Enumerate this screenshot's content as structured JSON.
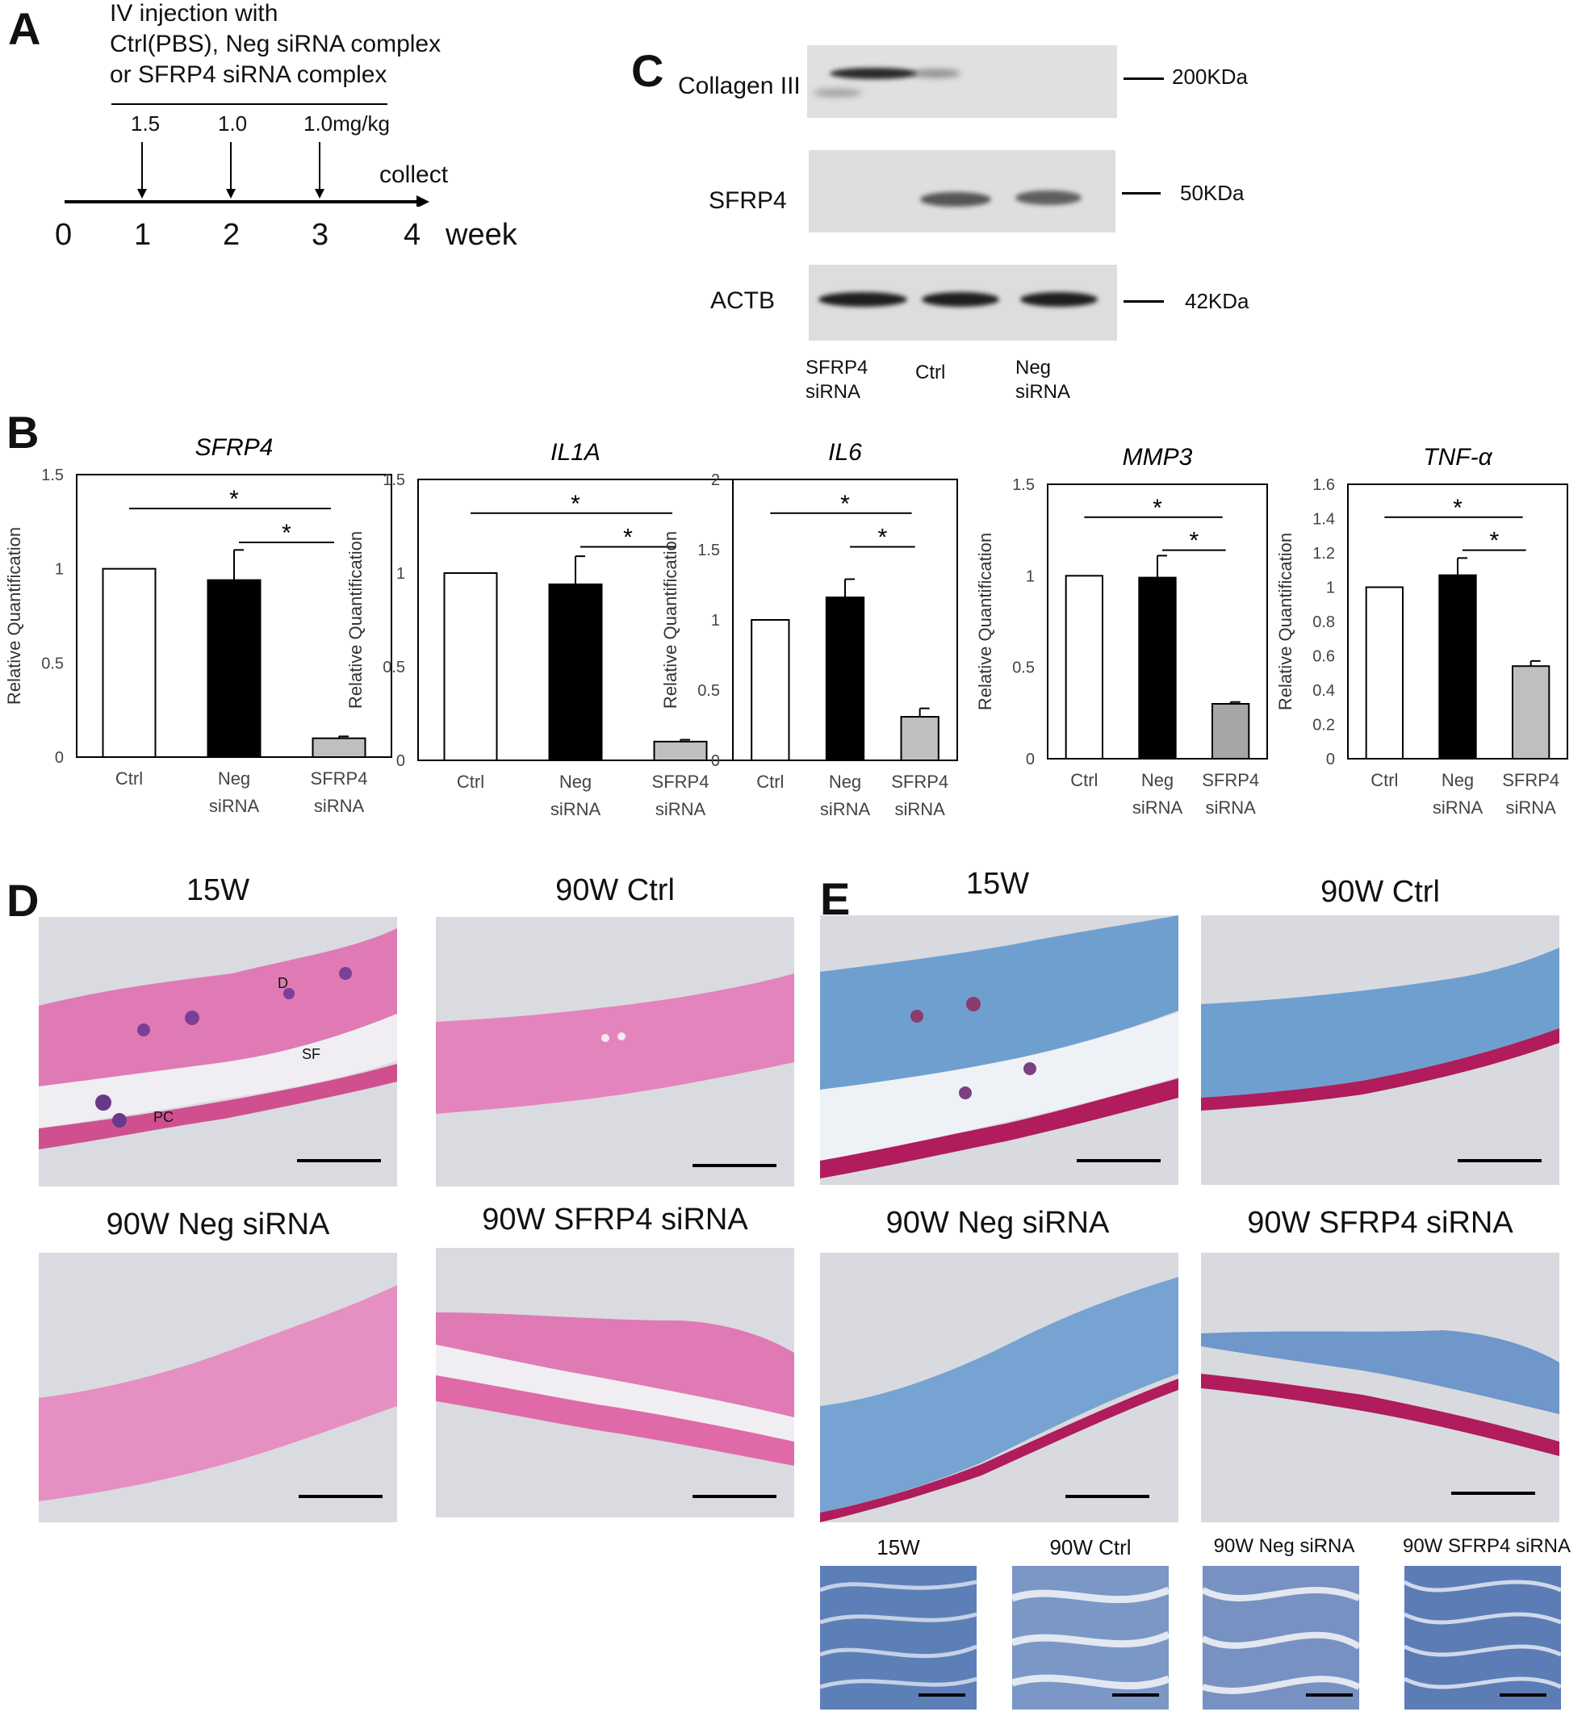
{
  "panels": {
    "A": "A",
    "B": "B",
    "C": "C",
    "D": "D",
    "E": "E"
  },
  "panelA": {
    "line1": "IV injection with",
    "line2": "Ctrl(PBS), Neg siRNA complex",
    "line3": "or SFRP4 siRNA complex",
    "doses": [
      "1.5",
      "1.0",
      "1.0mg/kg"
    ],
    "collect": "collect",
    "ticks": [
      "0",
      "1",
      "2",
      "3",
      "4"
    ],
    "unit": "week"
  },
  "panelC": {
    "rows": [
      {
        "label": "Collagen III",
        "marker": "200KDa"
      },
      {
        "label": "SFRP4",
        "marker": "50KDa"
      },
      {
        "label": "ACTB",
        "marker": "42KDa"
      }
    ],
    "lanes": [
      {
        "line1": "SFRP4",
        "line2": "siRNA"
      },
      {
        "line1": "Ctrl",
        "line2": ""
      },
      {
        "line1": "Neg",
        "line2": "siRNA"
      }
    ]
  },
  "chart_data": [
    {
      "type": "bar",
      "title": "SFRP4",
      "ylabel": "Relative Quantification",
      "categories": [
        "Ctrl",
        "Neg siRNA",
        "SFRP4 siRNA"
      ],
      "values": [
        1.0,
        0.94,
        0.1
      ],
      "errors": [
        0,
        0.16,
        0.01
      ],
      "ylim": [
        0,
        1.5
      ],
      "yticks": [
        "0",
        "0.5",
        "1",
        "1.5"
      ],
      "significance": [
        "*",
        "*"
      ],
      "colors": [
        "#ffffff",
        "#000000",
        "#bfbfbf"
      ]
    },
    {
      "type": "bar",
      "title": "IL1A",
      "ylabel": "Relative Quantification",
      "categories": [
        "Ctrl",
        "Neg siRNA",
        "SFRP4 siRNA"
      ],
      "values": [
        1.0,
        0.94,
        0.1
      ],
      "errors": [
        0,
        0.15,
        0.01
      ],
      "ylim": [
        0,
        1.5
      ],
      "yticks": [
        "0",
        "0.5",
        "1",
        "1.5"
      ],
      "significance": [
        "*",
        "*"
      ],
      "colors": [
        "#ffffff",
        "#000000",
        "#bfbfbf"
      ]
    },
    {
      "type": "bar",
      "title": "IL6",
      "ylabel": "Relative Quantification",
      "categories": [
        "Ctrl",
        "Neg siRNA",
        "SFRP4 siRNA"
      ],
      "values": [
        1.0,
        1.16,
        0.31
      ],
      "errors": [
        0,
        0.13,
        0.06
      ],
      "ylim": [
        0,
        2
      ],
      "yticks": [
        "0",
        "0.5",
        "1",
        "1.5",
        "2"
      ],
      "significance": [
        "*",
        "*"
      ],
      "colors": [
        "#ffffff",
        "#000000",
        "#bfbfbf"
      ]
    },
    {
      "type": "bar",
      "title": "MMP3",
      "ylabel": "Relative Quantification",
      "categories": [
        "Ctrl",
        "Neg siRNA",
        "SFRP4 siRNA"
      ],
      "values": [
        1.0,
        0.99,
        0.3
      ],
      "errors": [
        0,
        0.12,
        0.01
      ],
      "ylim": [
        0,
        1.5
      ],
      "yticks": [
        "0",
        "0.5",
        "1",
        "1.5"
      ],
      "significance": [
        "*",
        "*"
      ],
      "colors": [
        "#ffffff",
        "#000000",
        "#a6a6a6"
      ]
    },
    {
      "type": "bar",
      "title": "TNF-α",
      "ylabel": "Relative Quantification",
      "categories": [
        "Ctrl",
        "Neg siRNA",
        "SFRP4 siRNA"
      ],
      "values": [
        1.0,
        1.07,
        0.54
      ],
      "errors": [
        0,
        0.1,
        0.03
      ],
      "ylim": [
        0,
        1.6
      ],
      "yticks": [
        "0",
        "0.2",
        "0.4",
        "0.6",
        "0.8",
        "1",
        "1.2",
        "1.4",
        "1.6"
      ],
      "significance": [
        "*",
        "*"
      ],
      "colors": [
        "#ffffff",
        "#000000",
        "#bfbfbf"
      ]
    }
  ],
  "panelD": {
    "titles": [
      "15W",
      "90W Ctrl",
      "90W Neg siRNA",
      "90W SFRP4 siRNA"
    ],
    "annotations": [
      "D",
      "SF",
      "PC"
    ]
  },
  "panelE": {
    "titles": [
      "15W",
      "90W Ctrl",
      "90W Neg siRNA",
      "90W SFRP4 siRNA"
    ],
    "zoom_titles": [
      "15W",
      "90W Ctrl",
      "90W Neg siRNA",
      "90W SFRP4 siRNA"
    ]
  },
  "colors": {
    "he_pink": "#e27ab8",
    "masson_blue": "#6f9fcf",
    "muscle": "#b01c5c"
  }
}
